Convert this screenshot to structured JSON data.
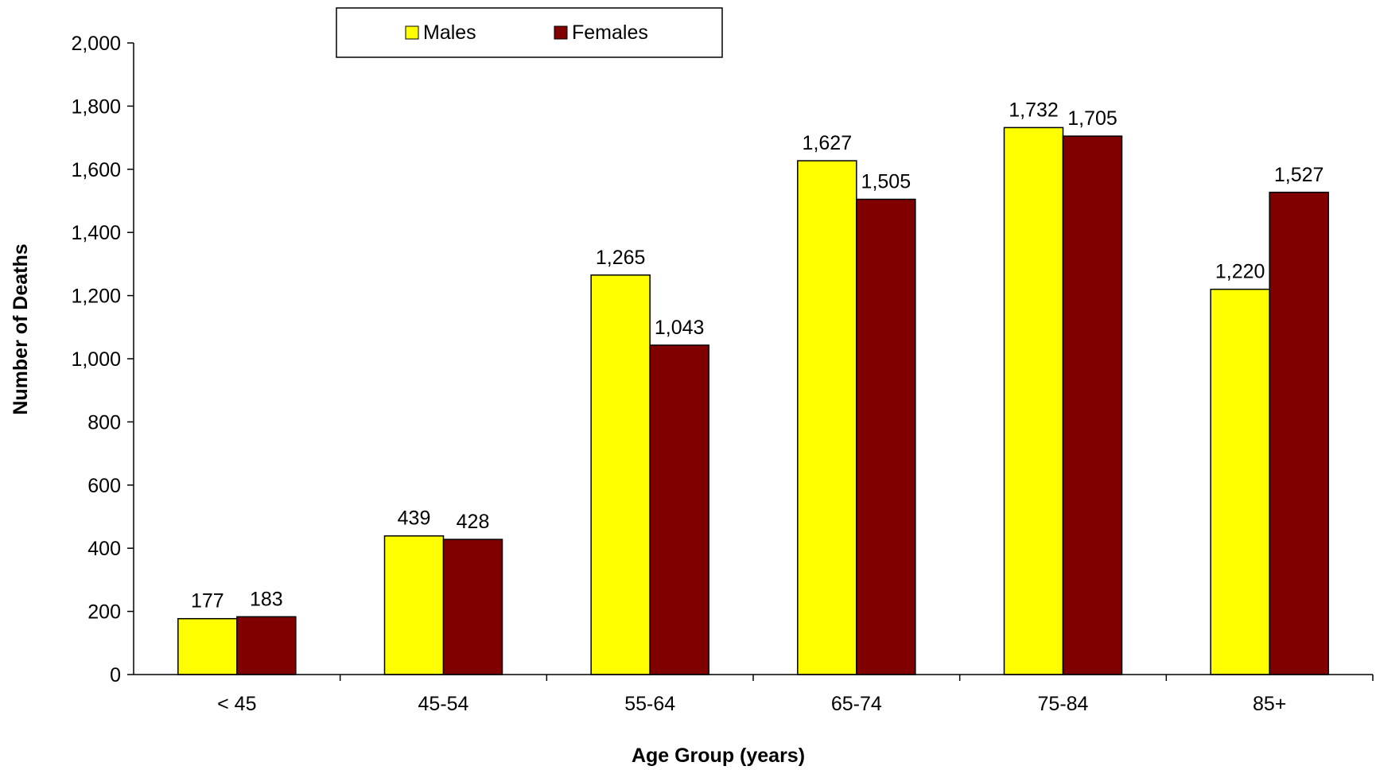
{
  "chart_data": {
    "type": "bar",
    "title": "",
    "xlabel": "Age  Group (years)",
    "ylabel": "Number of Deaths",
    "categories": [
      "< 45",
      "45-54",
      "55-64",
      "65-74",
      "75-84",
      "85+"
    ],
    "series": [
      {
        "name": "Males",
        "color": "#FFFF00",
        "values": [
          177,
          439,
          1265,
          1627,
          1732,
          1220
        ],
        "labels": [
          "177",
          "439",
          "1,265",
          "1,627",
          "1,732",
          "1,220"
        ]
      },
      {
        "name": "Females",
        "color": "#800000",
        "values": [
          183,
          428,
          1043,
          1505,
          1705,
          1527
        ],
        "labels": [
          "183",
          "428",
          "1,043",
          "1,505",
          "1,705",
          "1,527"
        ]
      }
    ],
    "ylim": [
      0,
      2000
    ],
    "ytick_values": [
      0,
      200,
      400,
      600,
      800,
      1000,
      1200,
      1400,
      1600,
      1800,
      2000
    ],
    "ytick_labels": [
      "0",
      "200",
      "400",
      "600",
      "800",
      "1,000",
      "1,200",
      "1,400",
      "1,600",
      "1,800",
      "2,000"
    ],
    "grid": false,
    "legend": "top"
  }
}
